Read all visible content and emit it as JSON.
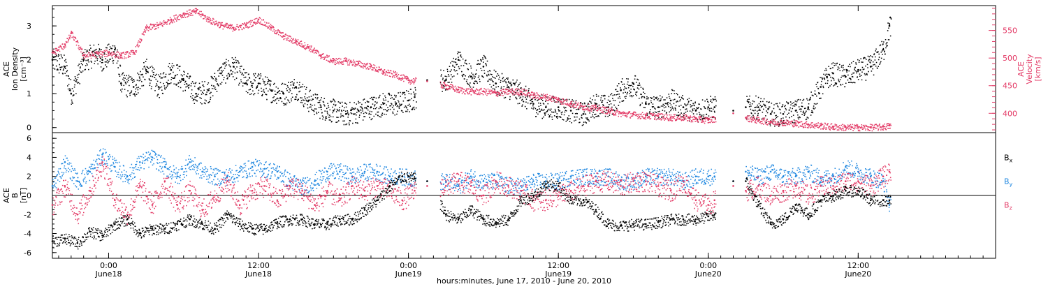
{
  "colors": {
    "black": "#000000",
    "pink": "#e33a66",
    "blue": "#1f87e0"
  },
  "x_axis": {
    "title": "hours:minutes, June 17, 2010 - June 20, 2010",
    "range_hours": [
      -4.5,
      71.0
    ],
    "ticks": [
      {
        "hours": 0,
        "time": "0:00",
        "date": "June18"
      },
      {
        "hours": 12,
        "time": "12:00",
        "date": "June18"
      },
      {
        "hours": 24,
        "time": "0:00",
        "date": "June19"
      },
      {
        "hours": 36,
        "time": "12:00",
        "date": "June19"
      },
      {
        "hours": 48,
        "time": "0:00",
        "date": "June20"
      },
      {
        "hours": 60,
        "time": "12:00",
        "date": "June20"
      }
    ]
  },
  "chart_data": [
    {
      "type": "scatter",
      "panel": "top",
      "ylabel_lines": [
        "ACE",
        "Ion Density",
        "[cm⁻³]"
      ],
      "ylim": [
        -0.15,
        3.6
      ],
      "yticks": [
        0,
        1,
        2,
        3
      ],
      "right_axis": {
        "label_lines": [
          "ACE",
          "Velocity",
          "[km/s]"
        ],
        "ylim": [
          365,
          595
        ],
        "yticks": [
          400,
          450,
          500,
          550
        ]
      },
      "series": [
        {
          "name": "Ion Density",
          "axis": "left",
          "color": "black",
          "x": [
            -4.5,
            -3.5,
            -3,
            -2,
            -1,
            -0.5,
            0.5,
            1,
            2,
            3,
            4,
            5,
            6,
            7,
            8,
            9,
            10,
            11,
            12,
            13,
            14,
            15,
            16,
            17,
            18,
            19,
            20,
            21,
            22,
            23,
            24,
            24.5,
            25.5,
            27,
            28,
            29,
            30,
            31,
            32,
            33,
            34,
            35,
            36,
            37,
            38,
            39,
            40,
            41,
            42,
            43,
            44,
            45,
            46,
            47,
            48,
            48.5,
            50,
            51,
            52,
            53,
            54,
            55,
            56,
            57,
            57.5,
            58,
            59,
            60,
            61,
            62,
            62.5
          ],
          "values": [
            2.0,
            1.8,
            1.0,
            2.0,
            2.2,
            2.0,
            2.3,
            1.3,
            1.2,
            1.7,
            1.2,
            1.7,
            1.4,
            1.0,
            1.1,
            1.6,
            1.8,
            1.3,
            1.3,
            1.1,
            1.0,
            1.2,
            0.8,
            0.6,
            0.5,
            0.4,
            0.5,
            0.6,
            0.7,
            0.7,
            0.8,
            0.9,
            1.4,
            1.4,
            2.0,
            1.5,
            1.8,
            1.3,
            1.2,
            1.0,
            0.7,
            0.6,
            0.6,
            0.5,
            0.4,
            0.7,
            0.6,
            1.1,
            1.3,
            0.7,
            0.6,
            0.8,
            0.6,
            0.5,
            0.6,
            0.6,
            0.5,
            0.6,
            0.6,
            0.4,
            0.4,
            0.5,
            0.6,
            1.2,
            1.5,
            1.6,
            1.5,
            1.7,
            1.8,
            2.3,
            3.0
          ]
        },
        {
          "name": "Velocity",
          "axis": "right",
          "color": "pink",
          "x": [
            -4.5,
            -3.5,
            -3,
            -2,
            0,
            1,
            2,
            3,
            4,
            5,
            6,
            7,
            8,
            9,
            10,
            11,
            12,
            13,
            14,
            15,
            16,
            17,
            18,
            19,
            20,
            21,
            22,
            23,
            24,
            25.5,
            27,
            28,
            29,
            30,
            31,
            32,
            33,
            34,
            35,
            36,
            37,
            38,
            39,
            40,
            41,
            42,
            43,
            44,
            45,
            46,
            47,
            48,
            50,
            51,
            52,
            53,
            54,
            55,
            56,
            57,
            58,
            59,
            60,
            61,
            62,
            62.5
          ],
          "values": [
            510,
            525,
            545,
            505,
            510,
            505,
            510,
            555,
            560,
            570,
            580,
            585,
            570,
            560,
            555,
            560,
            570,
            555,
            540,
            530,
            520,
            505,
            495,
            495,
            490,
            485,
            475,
            470,
            460,
            458,
            450,
            443,
            440,
            440,
            437,
            440,
            440,
            433,
            430,
            425,
            418,
            412,
            410,
            405,
            400,
            398,
            396,
            395,
            393,
            393,
            390,
            388,
            400,
            392,
            388,
            385,
            384,
            382,
            380,
            378,
            376,
            375,
            375,
            375,
            376,
            378
          ]
        }
      ]
    },
    {
      "type": "scatter",
      "panel": "bottom",
      "ylabel_lines": [
        "ACE",
        "B",
        "[nT]"
      ],
      "ylim": [
        -6.6,
        6.6
      ],
      "yticks": [
        -6,
        -4,
        -2,
        0,
        2,
        4,
        6
      ],
      "legend_placement": "right",
      "series": [
        {
          "name": "B",
          "subscript": "x",
          "color": "black",
          "x": [
            -4.5,
            -3.5,
            -2.5,
            -1.5,
            -0.5,
            0.5,
            1.5,
            2.5,
            3.5,
            4.5,
            5.5,
            6.5,
            7.5,
            8.5,
            9.5,
            10.5,
            11.5,
            12.5,
            13.5,
            14.5,
            15.5,
            16.5,
            17.5,
            18.5,
            19.5,
            20.5,
            21.5,
            22.5,
            23.5,
            24.5,
            25.5,
            27,
            28,
            29,
            30,
            31,
            32,
            33,
            34,
            35,
            36,
            37,
            38,
            39,
            40,
            41,
            42,
            43,
            44,
            45,
            46,
            47,
            48,
            48.5,
            50,
            51,
            52,
            53,
            54,
            55,
            56,
            57,
            58,
            59,
            60,
            61,
            62,
            62.5
          ],
          "values": [
            -4.8,
            -4.5,
            -5.0,
            -3.8,
            -4.2,
            -3.0,
            -2.5,
            -4.0,
            -3.5,
            -3.5,
            -3.0,
            -2.5,
            -3.0,
            -3.5,
            -2.0,
            -3.0,
            -3.5,
            -3.5,
            -2.8,
            -2.5,
            -2.5,
            -3.0,
            -3.0,
            -2.5,
            -2.5,
            -1.5,
            -0.5,
            1.0,
            2.0,
            1.8,
            1.5,
            -2.0,
            -2.5,
            -1.5,
            -2.5,
            -2.8,
            -2.5,
            -0.5,
            0.0,
            1.2,
            1.0,
            -0.5,
            -0.5,
            -1.5,
            -3.0,
            -3.2,
            -3.0,
            -3.0,
            -2.8,
            -2.5,
            -2.5,
            -2.5,
            -2.2,
            -2.0,
            1.5,
            1.5,
            -1.0,
            -3.0,
            -2.5,
            -1.0,
            -2.0,
            -0.5,
            0.0,
            0.5,
            0.5,
            -0.5,
            -0.5,
            -0.5
          ]
        },
        {
          "name": "B",
          "subscript": "y",
          "color": "blue",
          "x": [
            -4.5,
            -3.5,
            -2.5,
            -1.5,
            -0.5,
            0.5,
            1.5,
            2.5,
            3.5,
            4.5,
            5.5,
            6.5,
            7.5,
            8.5,
            9.5,
            10.5,
            11.5,
            12.5,
            13.5,
            14.5,
            15.5,
            16.5,
            17.5,
            18.5,
            19.5,
            20.5,
            21.5,
            22.5,
            23.5,
            24.5,
            25.5,
            27,
            28,
            29,
            30,
            31,
            32,
            33,
            34,
            35,
            36,
            37,
            38,
            39,
            40,
            41,
            42,
            43,
            44,
            45,
            46,
            47,
            48,
            48.5,
            50,
            51,
            52,
            53,
            54,
            55,
            56,
            57,
            58,
            59,
            60,
            61,
            62,
            62.5
          ],
          "values": [
            1.0,
            3.5,
            1.5,
            2.5,
            4.3,
            3.0,
            2.0,
            3.5,
            4.0,
            3.0,
            2.0,
            3.5,
            2.5,
            2.0,
            2.0,
            2.5,
            3.0,
            2.8,
            2.5,
            1.5,
            1.0,
            1.5,
            2.5,
            2.5,
            2.0,
            2.5,
            2.5,
            2.0,
            2.0,
            1.8,
            1.5,
            1.5,
            1.0,
            2.0,
            1.5,
            1.5,
            1.0,
            1.0,
            1.5,
            1.5,
            1.5,
            2.0,
            2.0,
            2.0,
            2.0,
            1.5,
            1.5,
            2.0,
            2.0,
            2.0,
            1.5,
            2.0,
            2.0,
            2.0,
            1.5,
            2.5,
            2.0,
            2.5,
            2.0,
            2.0,
            2.5,
            1.8,
            2.0,
            3.0,
            2.5,
            2.0,
            1.5,
            -1.0
          ]
        },
        {
          "name": "B",
          "subscript": "z",
          "color": "pink",
          "x": [
            -4.5,
            -3.5,
            -2.5,
            -1.5,
            -0.5,
            0.5,
            1.5,
            2.5,
            3.5,
            4.5,
            5.5,
            6.5,
            7.5,
            8.5,
            9.5,
            10.5,
            11.5,
            12.5,
            13.5,
            14.5,
            15.5,
            16.5,
            17.5,
            18.5,
            19.5,
            20.5,
            21.5,
            22.5,
            23.5,
            24.5,
            25.5,
            27,
            28,
            29,
            30,
            31,
            32,
            33,
            34,
            35,
            36,
            37,
            38,
            39,
            40,
            41,
            42,
            43,
            44,
            45,
            46,
            47,
            48,
            48.5,
            50,
            51,
            52,
            53,
            54,
            55,
            56,
            57,
            58,
            59,
            60,
            61,
            62,
            62.5
          ],
          "values": [
            -1.0,
            1.0,
            -2.0,
            0.5,
            3.5,
            -0.5,
            -2.0,
            1.0,
            -1.0,
            1.5,
            -1.0,
            0.5,
            -1.5,
            0.0,
            1.5,
            -1.0,
            0.5,
            1.0,
            -0.5,
            1.0,
            0.5,
            -1.0,
            0.5,
            -0.5,
            1.0,
            0.5,
            1.0,
            0.5,
            -0.5,
            0.5,
            1.0,
            1.0,
            1.5,
            1.0,
            0.0,
            1.5,
            1.0,
            0.5,
            -0.5,
            -0.5,
            0.0,
            0.5,
            1.0,
            1.5,
            1.5,
            1.0,
            1.5,
            1.5,
            1.0,
            0.5,
            1.5,
            -0.5,
            -1.0,
            -0.5,
            1.0,
            0.5,
            1.0,
            0.0,
            0.5,
            1.0,
            0.0,
            1.0,
            1.0,
            1.5,
            1.5,
            1.0,
            2.0,
            2.5
          ]
        }
      ]
    }
  ]
}
